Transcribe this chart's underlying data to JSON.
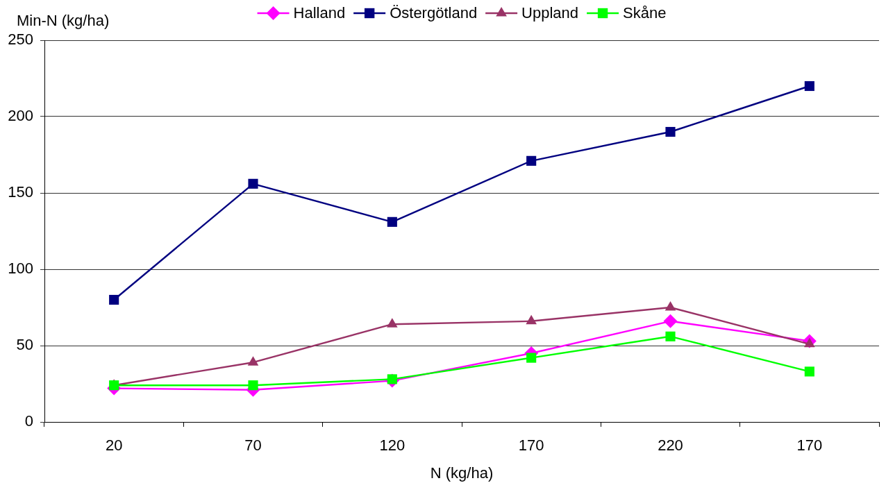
{
  "chart_data": {
    "type": "line",
    "xlabel": "N (kg/ha)",
    "ylabel": "Min-N (kg/ha)",
    "categories": [
      "20",
      "70",
      "120",
      "170",
      "220",
      "170"
    ],
    "ylim": [
      0,
      250
    ],
    "yticks": [
      0,
      50,
      100,
      150,
      200,
      250
    ],
    "grid": "y",
    "legend": "top",
    "series": [
      {
        "name": "Halland",
        "color": "#ff00ff",
        "marker": "diamond",
        "values": [
          22,
          21,
          27,
          45,
          66,
          53
        ]
      },
      {
        "name": "Östergötland",
        "color": "#000080",
        "marker": "square",
        "values": [
          80,
          156,
          131,
          171,
          190,
          220
        ]
      },
      {
        "name": "Uppland",
        "color": "#993366",
        "marker": "triangle",
        "values": [
          24,
          39,
          64,
          66,
          75,
          51
        ]
      },
      {
        "name": "Skåne",
        "color": "#00ff00",
        "marker": "square",
        "values": [
          24,
          24,
          28,
          42,
          56,
          33
        ]
      }
    ]
  }
}
